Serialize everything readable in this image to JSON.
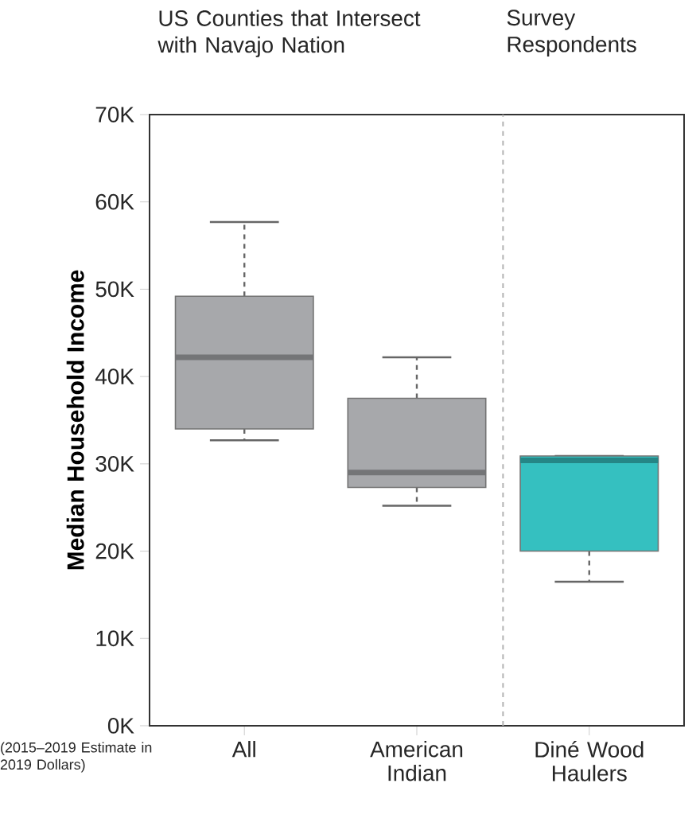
{
  "chart_data": {
    "type": "box",
    "ylabel": "Median Household Income",
    "categories": [
      "All",
      "American Indian",
      "Diné Wood Haulers"
    ],
    "boxes": [
      {
        "low": 32.7,
        "q1": 34.0,
        "median": 42.2,
        "q3": 49.2,
        "high": 57.7
      },
      {
        "low": 25.2,
        "q1": 27.3,
        "median": 29.0,
        "q3": 37.5,
        "high": 42.2
      },
      {
        "low": 16.5,
        "q1": 20.0,
        "median": 30.4,
        "q3": 30.9,
        "high": 30.9
      }
    ],
    "colors": [
      "#a7a8ab",
      "#a7a8ab",
      "#35c0c0"
    ],
    "ylim": [
      0,
      70
    ],
    "yticks": [
      {
        "value": 0,
        "label": "0K"
      },
      {
        "value": 10,
        "label": "10K"
      },
      {
        "value": 20,
        "label": "20K"
      },
      {
        "value": 30,
        "label": "30K"
      },
      {
        "value": 40,
        "label": "40K"
      },
      {
        "value": 50,
        "label": "50K"
      },
      {
        "value": 60,
        "label": "60K"
      },
      {
        "value": 70,
        "label": "70K"
      }
    ],
    "annotations": [
      "US Counties that Intersect with Navajo Nation",
      "Survey Respondents",
      "(2015–2019 Estimate in 2019 Dollars)"
    ]
  }
}
